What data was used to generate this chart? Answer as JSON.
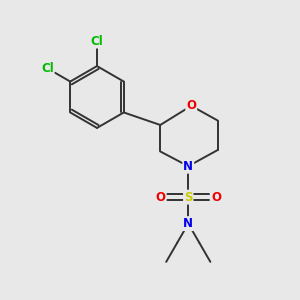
{
  "bg_color": "#e8e8e8",
  "atom_colors": {
    "C": "#333333",
    "N": "#0000ee",
    "O": "#ee0000",
    "S": "#cccc00",
    "Cl": "#00bb00"
  },
  "bond_color": "#333333",
  "figsize": [
    3.0,
    3.0
  ],
  "dpi": 100,
  "lw": 1.4,
  "fontsize": 8.5
}
